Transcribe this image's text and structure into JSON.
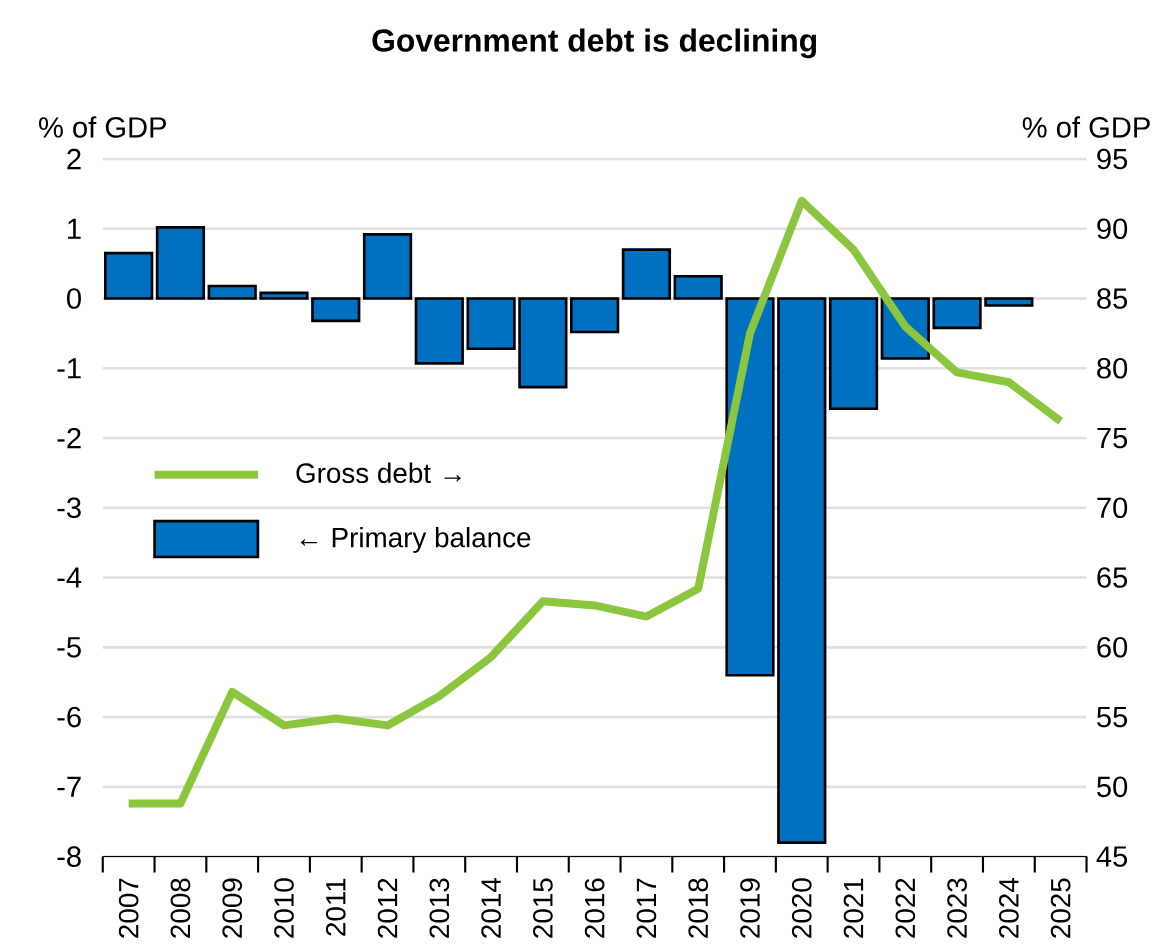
{
  "chart_data": {
    "type": "bar",
    "title": "Government debt is declining",
    "ylabel": "% of GDP",
    "y2label": "% of GDP",
    "categories": [
      "2007",
      "2008",
      "2009",
      "2010",
      "2011",
      "2012",
      "2013",
      "2014",
      "2015",
      "2016",
      "2017",
      "2018",
      "2019",
      "2020",
      "2021",
      "2022",
      "2023",
      "2024",
      "2025"
    ],
    "series": [
      {
        "name": "Gross debt →",
        "type": "line",
        "axis": "y2",
        "color": "#8cc63f",
        "values": [
          48.8,
          48.8,
          56.8,
          54.4,
          54.9,
          54.4,
          56.5,
          59.3,
          63.3,
          63.0,
          62.2,
          64.2,
          82.5,
          92.0,
          88.5,
          83.0,
          79.7,
          79.0,
          76.2
        ]
      },
      {
        "name": "← Primary balance",
        "color": "#0070c0",
        "values": [
          0.65,
          1.02,
          0.18,
          0.08,
          -0.32,
          0.92,
          -0.93,
          -0.72,
          -1.27,
          -0.48,
          0.7,
          0.32,
          -5.4,
          -7.8,
          -1.58,
          -0.86,
          -0.42,
          -0.1,
          null
        ]
      }
    ],
    "ylim": [
      -8,
      2
    ],
    "yticks": [
      -8,
      -7,
      -6,
      -5,
      -4,
      -3,
      -2,
      -1,
      0,
      1,
      2
    ],
    "y2lim": [
      45,
      95
    ],
    "y2ticks": [
      45,
      50,
      55,
      60,
      65,
      70,
      75,
      80,
      85,
      90,
      95
    ],
    "grid": "y",
    "legend": "left",
    "marker": "none",
    "line_style": "solid"
  }
}
